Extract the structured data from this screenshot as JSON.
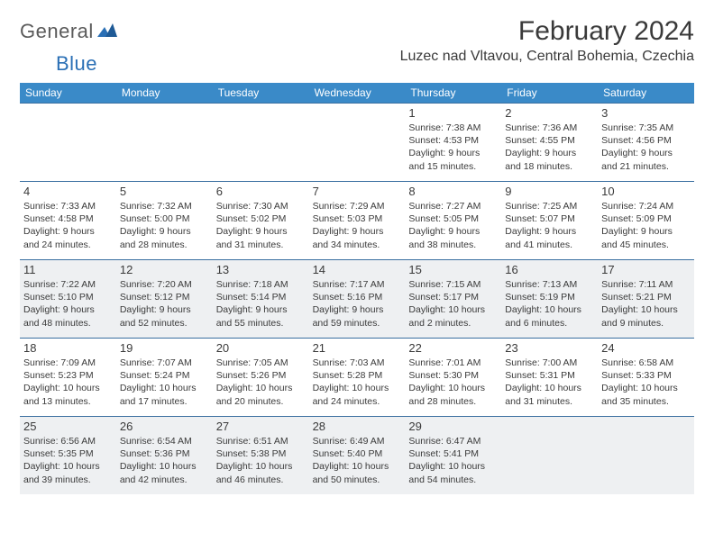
{
  "logo": {
    "general": "General",
    "blue": "Blue"
  },
  "header": {
    "month_title": "February 2024",
    "location": "Luzec nad Vltavou, Central Bohemia, Czechia"
  },
  "colors": {
    "header_bar": "#3a8ac8",
    "row_border": "#3a6fa0",
    "shade_bg": "#eef0f2",
    "light_bg": "#ffffff",
    "text": "#3a3a3a",
    "logo_blue": "#2a6fb5"
  },
  "day_names": [
    "Sunday",
    "Monday",
    "Tuesday",
    "Wednesday",
    "Thursday",
    "Friday",
    "Saturday"
  ],
  "weeks": [
    [
      {
        "day": "",
        "sunrise": "",
        "sunset": "",
        "daylight": ""
      },
      {
        "day": "",
        "sunrise": "",
        "sunset": "",
        "daylight": ""
      },
      {
        "day": "",
        "sunrise": "",
        "sunset": "",
        "daylight": ""
      },
      {
        "day": "",
        "sunrise": "",
        "sunset": "",
        "daylight": ""
      },
      {
        "day": "1",
        "sunrise": "Sunrise: 7:38 AM",
        "sunset": "Sunset: 4:53 PM",
        "daylight": "Daylight: 9 hours and 15 minutes."
      },
      {
        "day": "2",
        "sunrise": "Sunrise: 7:36 AM",
        "sunset": "Sunset: 4:55 PM",
        "daylight": "Daylight: 9 hours and 18 minutes."
      },
      {
        "day": "3",
        "sunrise": "Sunrise: 7:35 AM",
        "sunset": "Sunset: 4:56 PM",
        "daylight": "Daylight: 9 hours and 21 minutes."
      }
    ],
    [
      {
        "day": "4",
        "sunrise": "Sunrise: 7:33 AM",
        "sunset": "Sunset: 4:58 PM",
        "daylight": "Daylight: 9 hours and 24 minutes."
      },
      {
        "day": "5",
        "sunrise": "Sunrise: 7:32 AM",
        "sunset": "Sunset: 5:00 PM",
        "daylight": "Daylight: 9 hours and 28 minutes."
      },
      {
        "day": "6",
        "sunrise": "Sunrise: 7:30 AM",
        "sunset": "Sunset: 5:02 PM",
        "daylight": "Daylight: 9 hours and 31 minutes."
      },
      {
        "day": "7",
        "sunrise": "Sunrise: 7:29 AM",
        "sunset": "Sunset: 5:03 PM",
        "daylight": "Daylight: 9 hours and 34 minutes."
      },
      {
        "day": "8",
        "sunrise": "Sunrise: 7:27 AM",
        "sunset": "Sunset: 5:05 PM",
        "daylight": "Daylight: 9 hours and 38 minutes."
      },
      {
        "day": "9",
        "sunrise": "Sunrise: 7:25 AM",
        "sunset": "Sunset: 5:07 PM",
        "daylight": "Daylight: 9 hours and 41 minutes."
      },
      {
        "day": "10",
        "sunrise": "Sunrise: 7:24 AM",
        "sunset": "Sunset: 5:09 PM",
        "daylight": "Daylight: 9 hours and 45 minutes."
      }
    ],
    [
      {
        "day": "11",
        "sunrise": "Sunrise: 7:22 AM",
        "sunset": "Sunset: 5:10 PM",
        "daylight": "Daylight: 9 hours and 48 minutes."
      },
      {
        "day": "12",
        "sunrise": "Sunrise: 7:20 AM",
        "sunset": "Sunset: 5:12 PM",
        "daylight": "Daylight: 9 hours and 52 minutes."
      },
      {
        "day": "13",
        "sunrise": "Sunrise: 7:18 AM",
        "sunset": "Sunset: 5:14 PM",
        "daylight": "Daylight: 9 hours and 55 minutes."
      },
      {
        "day": "14",
        "sunrise": "Sunrise: 7:17 AM",
        "sunset": "Sunset: 5:16 PM",
        "daylight": "Daylight: 9 hours and 59 minutes."
      },
      {
        "day": "15",
        "sunrise": "Sunrise: 7:15 AM",
        "sunset": "Sunset: 5:17 PM",
        "daylight": "Daylight: 10 hours and 2 minutes."
      },
      {
        "day": "16",
        "sunrise": "Sunrise: 7:13 AM",
        "sunset": "Sunset: 5:19 PM",
        "daylight": "Daylight: 10 hours and 6 minutes."
      },
      {
        "day": "17",
        "sunrise": "Sunrise: 7:11 AM",
        "sunset": "Sunset: 5:21 PM",
        "daylight": "Daylight: 10 hours and 9 minutes."
      }
    ],
    [
      {
        "day": "18",
        "sunrise": "Sunrise: 7:09 AM",
        "sunset": "Sunset: 5:23 PM",
        "daylight": "Daylight: 10 hours and 13 minutes."
      },
      {
        "day": "19",
        "sunrise": "Sunrise: 7:07 AM",
        "sunset": "Sunset: 5:24 PM",
        "daylight": "Daylight: 10 hours and 17 minutes."
      },
      {
        "day": "20",
        "sunrise": "Sunrise: 7:05 AM",
        "sunset": "Sunset: 5:26 PM",
        "daylight": "Daylight: 10 hours and 20 minutes."
      },
      {
        "day": "21",
        "sunrise": "Sunrise: 7:03 AM",
        "sunset": "Sunset: 5:28 PM",
        "daylight": "Daylight: 10 hours and 24 minutes."
      },
      {
        "day": "22",
        "sunrise": "Sunrise: 7:01 AM",
        "sunset": "Sunset: 5:30 PM",
        "daylight": "Daylight: 10 hours and 28 minutes."
      },
      {
        "day": "23",
        "sunrise": "Sunrise: 7:00 AM",
        "sunset": "Sunset: 5:31 PM",
        "daylight": "Daylight: 10 hours and 31 minutes."
      },
      {
        "day": "24",
        "sunrise": "Sunrise: 6:58 AM",
        "sunset": "Sunset: 5:33 PM",
        "daylight": "Daylight: 10 hours and 35 minutes."
      }
    ],
    [
      {
        "day": "25",
        "sunrise": "Sunrise: 6:56 AM",
        "sunset": "Sunset: 5:35 PM",
        "daylight": "Daylight: 10 hours and 39 minutes."
      },
      {
        "day": "26",
        "sunrise": "Sunrise: 6:54 AM",
        "sunset": "Sunset: 5:36 PM",
        "daylight": "Daylight: 10 hours and 42 minutes."
      },
      {
        "day": "27",
        "sunrise": "Sunrise: 6:51 AM",
        "sunset": "Sunset: 5:38 PM",
        "daylight": "Daylight: 10 hours and 46 minutes."
      },
      {
        "day": "28",
        "sunrise": "Sunrise: 6:49 AM",
        "sunset": "Sunset: 5:40 PM",
        "daylight": "Daylight: 10 hours and 50 minutes."
      },
      {
        "day": "29",
        "sunrise": "Sunrise: 6:47 AM",
        "sunset": "Sunset: 5:41 PM",
        "daylight": "Daylight: 10 hours and 54 minutes."
      },
      {
        "day": "",
        "sunrise": "",
        "sunset": "",
        "daylight": ""
      },
      {
        "day": "",
        "sunrise": "",
        "sunset": "",
        "daylight": ""
      }
    ]
  ]
}
